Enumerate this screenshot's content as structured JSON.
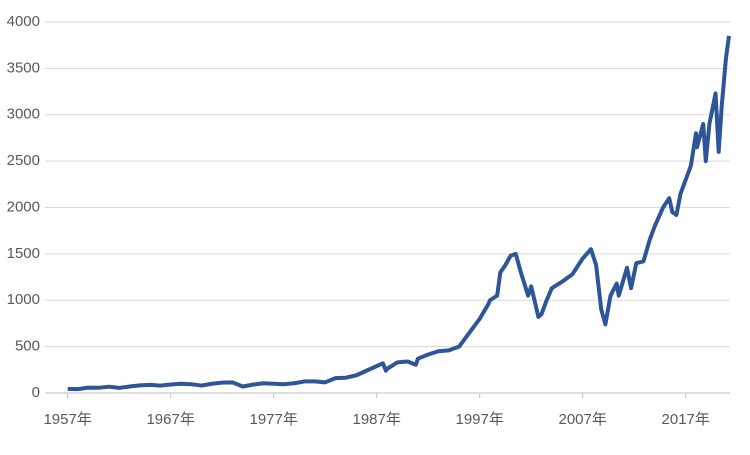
{
  "chart_data": {
    "type": "line",
    "x": [
      1957,
      1958,
      1959,
      1960,
      1961,
      1962,
      1963,
      1964,
      1965,
      1966,
      1967,
      1968,
      1969,
      1970,
      1971,
      1972,
      1973,
      1974,
      1975,
      1976,
      1977,
      1978,
      1979,
      1980,
      1981,
      1982,
      1983,
      1984,
      1985,
      1986,
      1987.6,
      1987.9,
      1988,
      1989,
      1990,
      1990.8,
      1991,
      1992,
      1993,
      1994,
      1995,
      1996,
      1997,
      1997.8,
      1998,
      1998.7,
      1999,
      1999.5,
      2000,
      2000.5,
      2001,
      2001.7,
      2002,
      2002.7,
      2003,
      2003.5,
      2004,
      2005,
      2006,
      2007,
      2007.8,
      2008.3,
      2008.8,
      2009.2,
      2009.7,
      2010.3,
      2010.5,
      2011.3,
      2011.7,
      2012.2,
      2012.9,
      2013.5,
      2014,
      2014.8,
      2015.4,
      2015.7,
      2016.1,
      2016.5,
      2017,
      2017.5,
      2018,
      2018.1,
      2018.7,
      2018.95,
      2019.3,
      2019.9,
      2020.2,
      2020.5,
      2020.9,
      2021.2
    ],
    "series": [
      {
        "color": "#2e5597",
        "values": [
          45,
          42,
          58,
          56,
          68,
          55,
          70,
          82,
          88,
          80,
          92,
          100,
          95,
          80,
          100,
          112,
          115,
          70,
          90,
          105,
          100,
          95,
          105,
          125,
          125,
          115,
          160,
          165,
          190,
          240,
          320,
          240,
          260,
          330,
          340,
          305,
          370,
          415,
          450,
          460,
          500,
          650,
          800,
          950,
          1000,
          1050,
          1300,
          1380,
          1480,
          1500,
          1300,
          1050,
          1150,
          820,
          850,
          1000,
          1130,
          1200,
          1280,
          1450,
          1550,
          1380,
          900,
          740,
          1050,
          1180,
          1050,
          1350,
          1130,
          1400,
          1420,
          1650,
          1800,
          2000,
          2100,
          1950,
          1920,
          2150,
          2300,
          2450,
          2800,
          2650,
          2900,
          2500,
          2900,
          3230,
          2600,
          3100,
          3600,
          3850
        ]
      }
    ],
    "xlim": [
      1954.8,
      2021.3
    ],
    "xticks": [
      {
        "value": 1957,
        "label": "1957年"
      },
      {
        "value": 1967,
        "label": "1967年"
      },
      {
        "value": 1977,
        "label": "1977年"
      },
      {
        "value": 1987,
        "label": "1987年"
      },
      {
        "value": 1997,
        "label": "1997年"
      },
      {
        "value": 2007,
        "label": "2007年"
      },
      {
        "value": 2017,
        "label": "2017年"
      }
    ],
    "ylim": [
      0,
      4000
    ],
    "yticks": [
      0,
      500,
      1000,
      1500,
      2000,
      2500,
      3000,
      3500,
      4000
    ],
    "grid": true
  }
}
